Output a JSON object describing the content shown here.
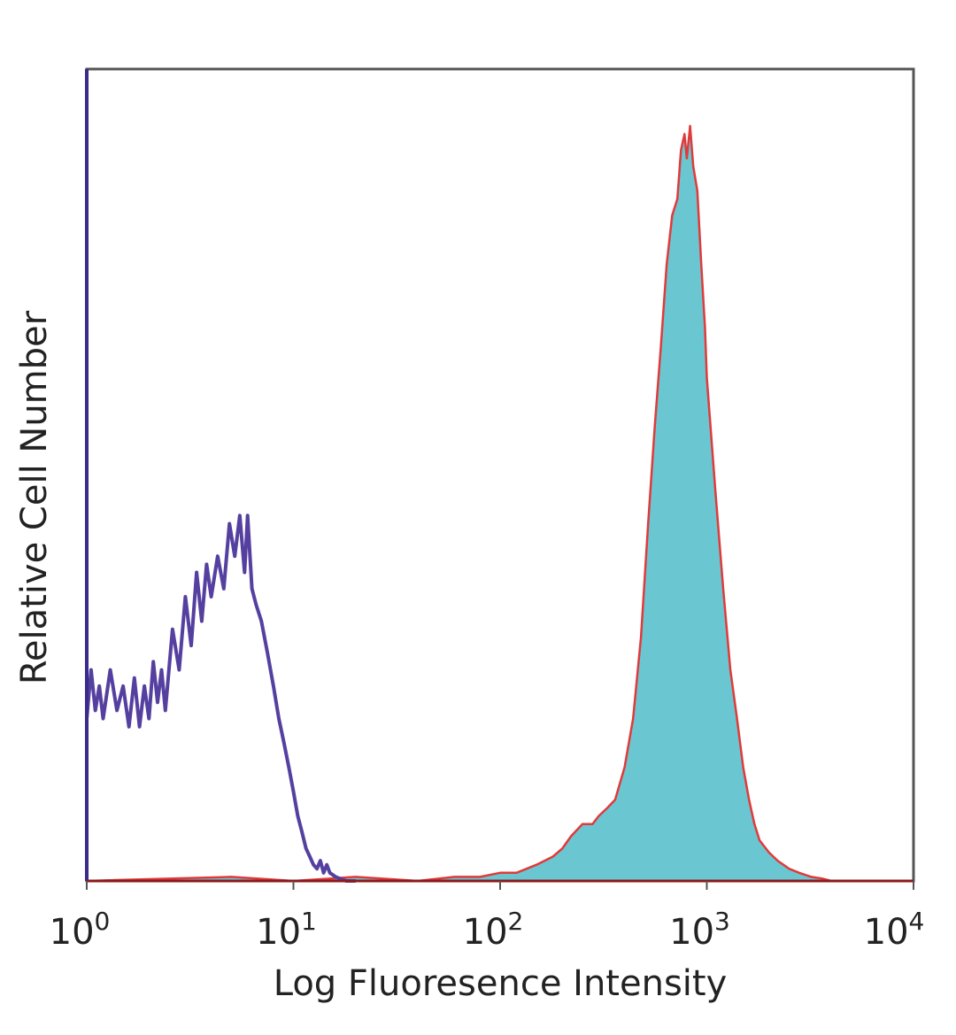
{
  "chart_data": {
    "type": "area",
    "title": "",
    "xlabel": "Log Fluoresence Intensity",
    "ylabel": "Relative Cell Number",
    "x_scale": "log",
    "xlim": [
      1,
      10000
    ],
    "ylim": [
      0,
      100
    ],
    "grid": false,
    "legend": "none",
    "x_ticks": [
      {
        "value": 1,
        "base": "10",
        "exp": "0"
      },
      {
        "value": 10,
        "base": "10",
        "exp": "1"
      },
      {
        "value": 100,
        "base": "10",
        "exp": "2"
      },
      {
        "value": 1000,
        "base": "10",
        "exp": "3"
      },
      {
        "value": 10000,
        "base": "10",
        "exp": "4"
      }
    ],
    "series": [
      {
        "color": "#5540a0",
        "fill": "none",
        "x": [
          1.0,
          1.05,
          1.1,
          1.15,
          1.2,
          1.3,
          1.4,
          1.5,
          1.6,
          1.7,
          1.8,
          1.9,
          2.0,
          2.1,
          2.2,
          2.3,
          2.4,
          2.6,
          2.8,
          3.0,
          3.2,
          3.4,
          3.6,
          3.8,
          4.0,
          4.3,
          4.6,
          4.9,
          5.2,
          5.5,
          5.8,
          6.0,
          6.3,
          6.6,
          7.0,
          7.5,
          8.0,
          8.5,
          9.0,
          9.5,
          10.0,
          10.5,
          11.0,
          11.5,
          12.0,
          12.5,
          13.0,
          13.5,
          14.0,
          14.5,
          15.0,
          16.0,
          18.0,
          20.0
        ],
        "y": [
          20,
          26,
          21,
          24,
          20,
          26,
          21,
          24,
          19,
          25,
          19,
          24,
          20,
          27,
          22,
          26,
          21,
          31,
          26,
          35,
          29,
          38,
          32,
          39,
          35,
          40,
          36,
          44,
          40,
          45,
          38,
          45,
          36,
          34,
          32,
          28,
          24,
          20,
          17,
          14,
          11,
          8,
          6,
          4,
          3,
          2,
          1.5,
          2.5,
          1,
          2,
          1,
          0.5,
          0,
          0
        ]
      },
      {
        "color": "#e03a3a",
        "fill": "#6ac7d2",
        "x": [
          1.0,
          5.0,
          10.0,
          20.0,
          40.0,
          60.0,
          80.0,
          100.0,
          120.0,
          150.0,
          180.0,
          200.0,
          220.0,
          250.0,
          280.0,
          300.0,
          330.0,
          360.0,
          400.0,
          440.0,
          480.0,
          520.0,
          560.0,
          600.0,
          640.0,
          680.0,
          720.0,
          750.0,
          780.0,
          800.0,
          830.0,
          860.0,
          900.0,
          940.0,
          980.0,
          1000.0,
          1100.0,
          1200.0,
          1300.0,
          1400.0,
          1500.0,
          1600.0,
          1700.0,
          1800.0,
          2000.0,
          2200.0,
          2500.0,
          2800.0,
          3200.0,
          3600.0,
          4000.0,
          10000.0
        ],
        "y": [
          0,
          0.5,
          0,
          0.5,
          0,
          0.5,
          0.5,
          1,
          1,
          2,
          3,
          4,
          5.5,
          7,
          7,
          8,
          9,
          10,
          14,
          20,
          30,
          44,
          56,
          66,
          76,
          82,
          84,
          90,
          92,
          89,
          93,
          88,
          85,
          76,
          68,
          62,
          48,
          36,
          26,
          20,
          14,
          10,
          7,
          5,
          3.5,
          2.5,
          1.5,
          1,
          0.5,
          0.3,
          0,
          0
        ]
      }
    ]
  }
}
